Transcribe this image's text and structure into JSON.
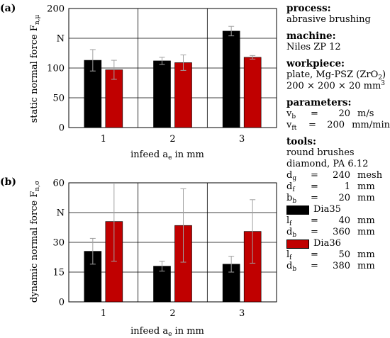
{
  "colors": {
    "dia35": "#000000",
    "dia36": "#c00000",
    "grid": "#000000",
    "error": "#a0a0a0"
  },
  "chart_data": [
    {
      "type": "bar",
      "panel_label": "(a)",
      "ylabel_main": "static normal force F",
      "ylabel_sub": "n,μ",
      "unit_label": "N",
      "xlabel_main": "infeed a",
      "xlabel_sub": "e",
      "xlabel_tail": " in mm",
      "categories": [
        "1",
        "2",
        "3"
      ],
      "ylim": [
        0,
        200
      ],
      "yticks": [
        0,
        50,
        100,
        200
      ],
      "series": [
        {
          "name": "Dia35",
          "color": "#000000",
          "values": [
            113,
            112,
            162
          ],
          "errors": [
            18,
            6,
            8
          ]
        },
        {
          "name": "Dia36",
          "color": "#c00000",
          "values": [
            97,
            109,
            118
          ],
          "errors": [
            16,
            13,
            3
          ]
        }
      ],
      "grid": true
    },
    {
      "type": "bar",
      "panel_label": "(b)",
      "ylabel_main": "dynamic normal force F",
      "ylabel_sub": "n,σ",
      "unit_label": "N",
      "xlabel_main": "infeed a",
      "xlabel_sub": "e",
      "xlabel_tail": " in mm",
      "categories": [
        "1",
        "2",
        "3"
      ],
      "ylim": [
        0,
        60
      ],
      "yticks": [
        0,
        15,
        30,
        60
      ],
      "series": [
        {
          "name": "Dia35",
          "color": "#000000",
          "values": [
            25.5,
            18,
            19
          ],
          "errors": [
            6.5,
            2.5,
            4
          ]
        },
        {
          "name": "Dia36",
          "color": "#c00000",
          "values": [
            40.5,
            38.5,
            35.5
          ],
          "errors": [
            20,
            18.5,
            16
          ]
        }
      ],
      "grid": true
    }
  ],
  "legend": {
    "process_title": "process:",
    "process_value": "abrasive brushing",
    "machine_title": "machine:",
    "machine_value": "Niles ZP 12",
    "workpiece_title": "workpiece:",
    "workpiece_line1": "plate, Mg-PSZ (ZrO",
    "workpiece_line1_sub": "2",
    "workpiece_line1_end": ")",
    "workpiece_line2": "200 × 200 × 20 mm",
    "workpiece_line2_sup": "3",
    "parameters_title": "parameters:",
    "parameters": [
      {
        "symbol": "v",
        "sub": "b",
        "eq": "=",
        "value": "20",
        "unit": "m/s"
      },
      {
        "symbol": "v",
        "sub": "ft",
        "eq": "=",
        "value": "200",
        "unit": "mm/min"
      }
    ],
    "tools_title": "tools:",
    "tools_line1": "round brushes",
    "tools_line2": "diamond, PA 6.12",
    "tool_params": [
      {
        "symbol": "d",
        "sub": "g",
        "eq": "=",
        "value": "240",
        "unit": "mesh"
      },
      {
        "symbol": "d",
        "sub": "f",
        "eq": "=",
        "value": "1",
        "unit": "mm"
      },
      {
        "symbol": "b",
        "sub": "b",
        "eq": "=",
        "value": "20",
        "unit": "mm"
      }
    ],
    "dia35_label": "Dia35",
    "dia35_params": [
      {
        "symbol": "l",
        "sub": "f",
        "eq": "=",
        "value": "40",
        "unit": "mm"
      },
      {
        "symbol": "d",
        "sub": "b",
        "eq": "=",
        "value": "360",
        "unit": "mm"
      }
    ],
    "dia36_label": "Dia36",
    "dia36_params": [
      {
        "symbol": "l",
        "sub": "f",
        "eq": "=",
        "value": "50",
        "unit": "mm"
      },
      {
        "symbol": "d",
        "sub": "b",
        "eq": "=",
        "value": "380",
        "unit": "mm"
      }
    ]
  }
}
